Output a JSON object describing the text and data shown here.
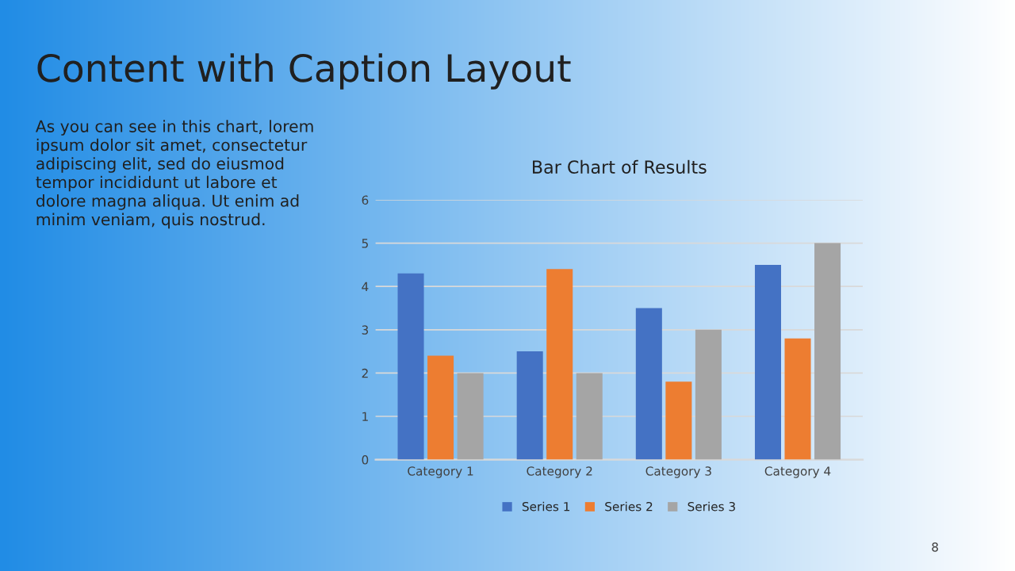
{
  "chart_data": {
    "type": "bar",
    "title": "Bar Chart of Results",
    "categories": [
      "Category 1",
      "Category 2",
      "Category 3",
      "Category 4"
    ],
    "series": [
      {
        "name": "Series 1",
        "color": "#4472c4",
        "values": [
          4.3,
          2.5,
          3.5,
          4.5
        ]
      },
      {
        "name": "Series 2",
        "color": "#ed7d31",
        "values": [
          2.4,
          4.4,
          1.8,
          2.8
        ]
      },
      {
        "name": "Series 3",
        "color": "#a5a5a5",
        "values": [
          2,
          2,
          3,
          5
        ]
      }
    ],
    "ylim": [
      0,
      6
    ],
    "yticks": [
      0,
      1,
      2,
      3,
      4,
      5,
      6
    ],
    "grid": "y",
    "legend": "bottom",
    "annotations": [
      "Content with Caption Layout",
      "As you can see in this chart, lorem\nipsum dolor sit amet, consectetur\nadipiscing elit, sed do eiusmod\ntempor incididunt ut labore et\ndolore magna aliqua. Ut enim ad\nminim veniam, quis nostrud.",
      "8"
    ]
  }
}
